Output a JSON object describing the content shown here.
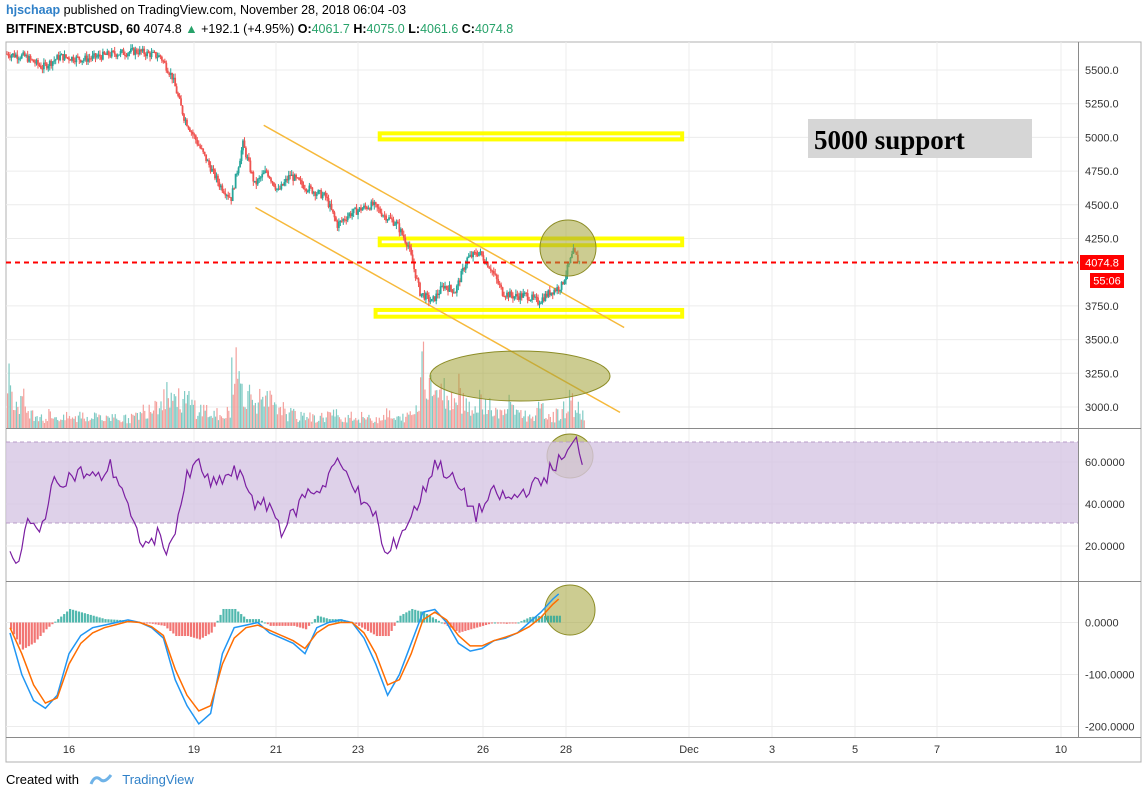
{
  "header": {
    "author": "hjschaap",
    "published_text": "published on TradingView.com, November 28, 2018 06:04 -03",
    "symbol": "BITFINEX:BTCUSD, 60",
    "last": "4074.8",
    "change_arrow": "▲",
    "change": "+192.1 (+4.95%)",
    "open_label": "O:",
    "open": "4061.7",
    "high_label": "H:",
    "high": "4075.0",
    "low_label": "L:",
    "low": "4061.6",
    "close_label": "C:",
    "close": "4074.8"
  },
  "footer": {
    "created_with": "Created with",
    "brand": "TradingView"
  },
  "annotation": {
    "text": "5000 support"
  },
  "price_tags": {
    "last_price": "4074.8",
    "countdown": "55:06"
  },
  "colors": {
    "up": "#26a69a",
    "down": "#ef5350",
    "channel": "#f6b93b",
    "zone": "#ffff00",
    "circle": "#9e9e28",
    "rsi": "#7b1fa2",
    "macd": "#2196f3",
    "signal": "#ff6d00"
  },
  "chart_data": [
    {
      "type": "candlestick",
      "title": "BITFINEX:BTCUSD, 60",
      "x_ticks": [
        "16",
        "19",
        "21",
        "23",
        "26",
        "28",
        "Dec",
        "3",
        "5",
        "7",
        "10"
      ],
      "y_ticks": [
        "5500.0",
        "5250.0",
        "5000.0",
        "4750.0",
        "4500.0",
        "4250.0",
        "3750.0",
        "3500.0",
        "3250.0",
        "3000.0"
      ],
      "ylim": [
        2900,
        5720
      ],
      "price_path": [
        [
          0,
          5620
        ],
        [
          3,
          5600
        ],
        [
          6,
          5520
        ],
        [
          9,
          5600
        ],
        [
          13,
          5580
        ],
        [
          18,
          5620
        ],
        [
          22,
          5640
        ],
        [
          26,
          5600
        ],
        [
          28,
          5450
        ],
        [
          30,
          5150
        ],
        [
          33,
          4900
        ],
        [
          36,
          4650
        ],
        [
          38,
          4550
        ],
        [
          40,
          4950
        ],
        [
          42,
          4650
        ],
        [
          44,
          4750
        ],
        [
          46,
          4600
        ],
        [
          48,
          4720
        ],
        [
          50,
          4650
        ],
        [
          52,
          4600
        ],
        [
          54,
          4560
        ],
        [
          56,
          4350
        ],
        [
          58,
          4430
        ],
        [
          60,
          4470
        ],
        [
          62,
          4500
        ],
        [
          64,
          4420
        ],
        [
          66,
          4360
        ],
        [
          68,
          4200
        ],
        [
          70,
          3850
        ],
        [
          72,
          3780
        ],
        [
          74,
          3900
        ],
        [
          76,
          3860
        ],
        [
          78,
          4100
        ],
        [
          80,
          4150
        ],
        [
          82,
          4030
        ],
        [
          84,
          3850
        ],
        [
          86,
          3820
        ],
        [
          88,
          3830
        ],
        [
          90,
          3780
        ],
        [
          92,
          3850
        ],
        [
          94,
          3900
        ],
        [
          96,
          4150
        ],
        [
          97,
          4074.8
        ]
      ],
      "volume_levels": [
        0.5,
        0.25,
        0.3,
        0.2,
        0.15,
        0.15,
        0.1,
        0.15,
        0.12,
        0.1,
        0.12,
        0.1,
        0.15,
        0.12,
        0.12,
        0.15,
        0.1,
        0.12,
        0.15,
        0.1,
        0.1,
        0.12,
        0.15,
        0.2,
        0.25,
        0.3,
        0.35,
        0.4,
        0.35,
        0.3,
        0.3,
        0.25,
        0.2,
        0.2,
        0.15,
        0.15,
        0.1,
        0.2,
        0.7,
        0.5,
        0.4,
        0.35,
        0.3,
        0.25,
        0.3,
        0.2,
        0.25,
        0.15,
        0.15,
        0.12,
        0.15,
        0.12,
        0.1,
        0.12,
        0.15,
        0.15,
        0.1,
        0.12,
        0.15,
        0.1,
        0.12,
        0.1,
        0.1,
        0.12,
        0.15,
        0.1,
        0.1,
        0.12,
        0.15,
        0.2,
        0.85,
        0.5,
        0.45,
        0.35,
        0.4,
        0.3,
        0.5,
        0.3,
        0.25,
        0.2,
        0.3,
        0.25,
        0.2,
        0.15,
        0.2,
        0.25,
        0.2,
        0.15,
        0.12,
        0.15,
        0.2,
        0.15,
        0.12,
        0.15,
        0.2,
        0.3,
        0.2,
        0.15
      ],
      "horizontal_line": 4074.8,
      "zones": [
        {
          "from": 4985,
          "to": 5030,
          "start_day": 23.5,
          "end_day": 30.8
        },
        {
          "from": 4200,
          "to": 4250,
          "start_day": 23.5,
          "end_day": 30.8
        },
        {
          "from": 3670,
          "to": 3720,
          "start_day": 23.4,
          "end_day": 30.8
        }
      ],
      "channel_lines": [
        {
          "from": [
            20.7,
            5090
          ],
          "to": [
            29.4,
            3590
          ]
        },
        {
          "from": [
            20.5,
            4480
          ],
          "to": [
            29.3,
            2960
          ]
        }
      ]
    },
    {
      "type": "line",
      "name": "RSI",
      "y_ticks": [
        "60.0000",
        "40.0000",
        "20.0000"
      ],
      "ylim": [
        5,
        75
      ],
      "band": [
        30,
        70
      ],
      "path": [
        [
          0,
          18
        ],
        [
          1,
          8
        ],
        [
          3,
          32
        ],
        [
          5,
          25
        ],
        [
          7,
          48
        ],
        [
          9,
          52
        ],
        [
          12,
          55
        ],
        [
          15,
          52
        ],
        [
          17,
          58
        ],
        [
          19,
          48
        ],
        [
          21,
          28
        ],
        [
          23,
          20
        ],
        [
          25,
          25
        ],
        [
          27,
          18
        ],
        [
          30,
          52
        ],
        [
          32,
          60
        ],
        [
          34,
          48
        ],
        [
          36,
          52
        ],
        [
          38,
          55
        ],
        [
          40,
          50
        ],
        [
          42,
          38
        ],
        [
          44,
          40
        ],
        [
          46,
          28
        ],
        [
          48,
          35
        ],
        [
          50,
          45
        ],
        [
          53,
          48
        ],
        [
          55,
          60
        ],
        [
          58,
          52
        ],
        [
          60,
          38
        ],
        [
          62,
          36
        ],
        [
          63,
          20
        ],
        [
          64,
          15
        ],
        [
          66,
          25
        ],
        [
          68,
          34
        ],
        [
          70,
          45
        ],
        [
          72,
          60
        ],
        [
          74,
          55
        ],
        [
          76,
          48
        ],
        [
          79,
          35
        ],
        [
          82,
          45
        ],
        [
          85,
          42
        ],
        [
          88,
          48
        ],
        [
          90,
          50
        ],
        [
          92,
          58
        ],
        [
          94,
          62
        ],
        [
          96,
          70
        ],
        [
          97,
          62
        ]
      ]
    },
    {
      "type": "line",
      "name": "MACD",
      "y_ticks": [
        "0.0000",
        "-100.0000",
        "-200.0000"
      ],
      "ylim": [
        -220,
        70
      ],
      "macd": [
        [
          0,
          -20
        ],
        [
          2,
          -100
        ],
        [
          4,
          -150
        ],
        [
          6,
          -165
        ],
        [
          8,
          -140
        ],
        [
          10,
          -60
        ],
        [
          12,
          -25
        ],
        [
          14,
          -10
        ],
        [
          16,
          -5
        ],
        [
          18,
          0
        ],
        [
          20,
          5
        ],
        [
          22,
          0
        ],
        [
          24,
          -10
        ],
        [
          26,
          -30
        ],
        [
          28,
          -110
        ],
        [
          30,
          -160
        ],
        [
          32,
          -195
        ],
        [
          34,
          -175
        ],
        [
          36,
          -60
        ],
        [
          38,
          -10
        ],
        [
          40,
          -5
        ],
        [
          42,
          0
        ],
        [
          44,
          -20
        ],
        [
          46,
          -30
        ],
        [
          48,
          -40
        ],
        [
          50,
          -60
        ],
        [
          52,
          -10
        ],
        [
          54,
          0
        ],
        [
          56,
          5
        ],
        [
          58,
          0
        ],
        [
          60,
          -30
        ],
        [
          62,
          -80
        ],
        [
          64,
          -140
        ],
        [
          66,
          -100
        ],
        [
          68,
          -40
        ],
        [
          70,
          20
        ],
        [
          72,
          25
        ],
        [
          74,
          0
        ],
        [
          76,
          -40
        ],
        [
          78,
          -55
        ],
        [
          80,
          -50
        ],
        [
          82,
          -35
        ],
        [
          84,
          -30
        ],
        [
          86,
          -20
        ],
        [
          88,
          0
        ],
        [
          90,
          20
        ],
        [
          92,
          45
        ],
        [
          93,
          55
        ]
      ],
      "signal": [
        [
          0,
          -10
        ],
        [
          2,
          -60
        ],
        [
          4,
          -120
        ],
        [
          6,
          -155
        ],
        [
          8,
          -145
        ],
        [
          10,
          -80
        ],
        [
          12,
          -40
        ],
        [
          14,
          -20
        ],
        [
          16,
          -10
        ],
        [
          18,
          -4
        ],
        [
          20,
          2
        ],
        [
          22,
          0
        ],
        [
          24,
          -8
        ],
        [
          26,
          -25
        ],
        [
          28,
          -90
        ],
        [
          30,
          -140
        ],
        [
          32,
          -170
        ],
        [
          34,
          -160
        ],
        [
          36,
          -80
        ],
        [
          38,
          -30
        ],
        [
          40,
          -10
        ],
        [
          42,
          -5
        ],
        [
          44,
          -15
        ],
        [
          46,
          -25
        ],
        [
          48,
          -35
        ],
        [
          50,
          -50
        ],
        [
          52,
          -20
        ],
        [
          54,
          -5
        ],
        [
          56,
          0
        ],
        [
          58,
          0
        ],
        [
          60,
          -20
        ],
        [
          62,
          -60
        ],
        [
          64,
          -120
        ],
        [
          66,
          -110
        ],
        [
          68,
          -60
        ],
        [
          70,
          5
        ],
        [
          72,
          20
        ],
        [
          74,
          5
        ],
        [
          76,
          -25
        ],
        [
          78,
          -45
        ],
        [
          80,
          -45
        ],
        [
          82,
          -35
        ],
        [
          84,
          -28
        ],
        [
          86,
          -20
        ],
        [
          88,
          -8
        ],
        [
          90,
          10
        ],
        [
          92,
          35
        ],
        [
          93,
          45
        ]
      ]
    }
  ]
}
